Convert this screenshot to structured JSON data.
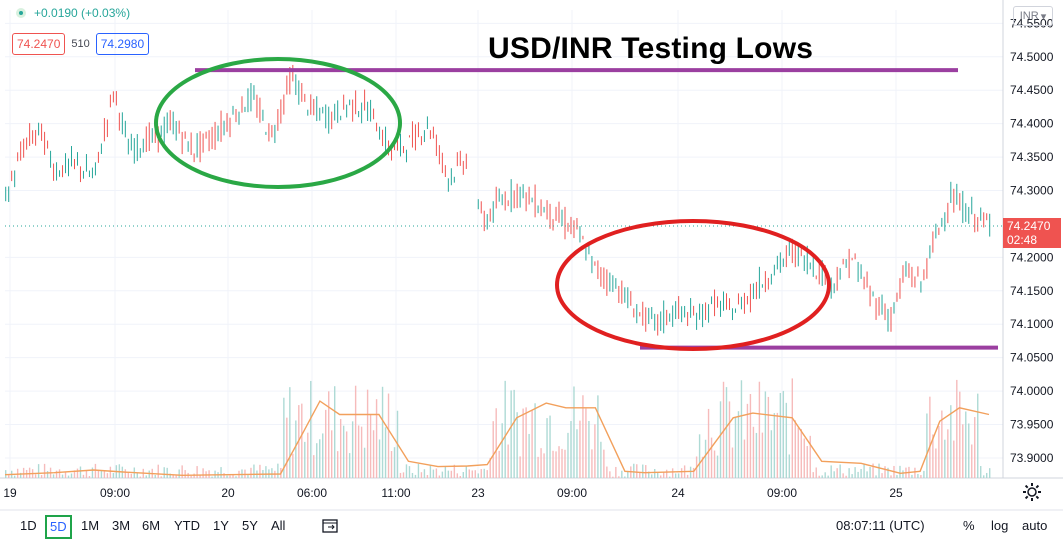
{
  "header": {
    "change": "+0.0190 (+0.03%)",
    "bid": "74.2470",
    "spread": "510",
    "ask": "74.2980",
    "currency": "INR"
  },
  "annotation": {
    "title": "USD/INR Testing Lows",
    "resistance_level": 74.48,
    "support_level": 74.065,
    "colors": {
      "resistance": "#9b3fa0",
      "green_ellipse": "#2aa845",
      "red_ellipse": "#e02020"
    }
  },
  "price_label": {
    "price": "74.2470",
    "countdown": "02:48"
  },
  "chart_data": {
    "type": "candlestick+volume",
    "title": "USD/INR Testing Lows",
    "y_ticks": [
      "74.5500",
      "74.5000",
      "74.4500",
      "74.4000",
      "74.3500",
      "74.3000",
      "74.2000",
      "74.1500",
      "74.1000",
      "74.0500",
      "74.0000",
      "73.9500",
      "73.9000"
    ],
    "ylim": [
      73.87,
      74.57
    ],
    "x_ticks": [
      "19",
      "09:00",
      "20",
      "06:00",
      "11:00",
      "23",
      "09:00",
      "24",
      "09:00",
      "25"
    ],
    "last_price": 74.247,
    "price_path": [
      [
        0,
        74.29
      ],
      [
        0.02,
        74.37
      ],
      [
        0.035,
        74.39
      ],
      [
        0.05,
        74.33
      ],
      [
        0.07,
        74.34
      ],
      [
        0.09,
        74.32
      ],
      [
        0.11,
        74.45
      ],
      [
        0.125,
        74.36
      ],
      [
        0.15,
        74.38
      ],
      [
        0.17,
        74.4
      ],
      [
        0.19,
        74.36
      ],
      [
        0.21,
        74.38
      ],
      [
        0.23,
        74.41
      ],
      [
        0.25,
        74.44
      ],
      [
        0.27,
        74.38
      ],
      [
        0.29,
        74.47
      ],
      [
        0.31,
        74.42
      ],
      [
        0.33,
        74.41
      ],
      [
        0.35,
        74.43
      ],
      [
        0.37,
        74.42
      ],
      [
        0.39,
        74.36
      ],
      [
        0.41,
        74.37
      ],
      [
        0.43,
        74.4
      ],
      [
        0.45,
        74.32
      ],
      [
        0.47,
        74.35
      ],
      [
        0.485,
        74.25
      ],
      [
        0.5,
        74.28
      ],
      [
        0.52,
        74.3
      ],
      [
        0.54,
        74.28
      ],
      [
        0.56,
        74.26
      ],
      [
        0.58,
        74.24
      ],
      [
        0.6,
        74.18
      ],
      [
        0.62,
        74.16
      ],
      [
        0.64,
        74.12
      ],
      [
        0.66,
        74.1
      ],
      [
        0.68,
        74.12
      ],
      [
        0.7,
        74.11
      ],
      [
        0.72,
        74.13
      ],
      [
        0.74,
        74.12
      ],
      [
        0.76,
        74.15
      ],
      [
        0.78,
        74.18
      ],
      [
        0.8,
        74.21
      ],
      [
        0.82,
        74.19
      ],
      [
        0.84,
        74.16
      ],
      [
        0.86,
        74.2
      ],
      [
        0.88,
        74.14
      ],
      [
        0.9,
        74.11
      ],
      [
        0.915,
        74.18
      ],
      [
        0.93,
        74.16
      ],
      [
        0.945,
        74.23
      ],
      [
        0.96,
        74.29
      ],
      [
        0.975,
        74.27
      ],
      [
        1.0,
        74.247
      ]
    ],
    "volume_avg_path": [
      [
        0,
        73.875
      ],
      [
        0.05,
        73.878
      ],
      [
        0.09,
        73.882
      ],
      [
        0.12,
        73.879
      ],
      [
        0.18,
        73.874
      ],
      [
        0.28,
        73.876
      ],
      [
        0.3,
        73.93
      ],
      [
        0.32,
        73.985
      ],
      [
        0.34,
        73.965
      ],
      [
        0.38,
        73.965
      ],
      [
        0.41,
        73.895
      ],
      [
        0.44,
        73.887
      ],
      [
        0.47,
        73.888
      ],
      [
        0.49,
        73.89
      ],
      [
        0.52,
        73.96
      ],
      [
        0.55,
        73.982
      ],
      [
        0.57,
        73.975
      ],
      [
        0.6,
        73.975
      ],
      [
        0.63,
        73.88
      ],
      [
        0.65,
        73.878
      ],
      [
        0.7,
        73.88
      ],
      [
        0.72,
        73.92
      ],
      [
        0.74,
        73.96
      ],
      [
        0.76,
        73.967
      ],
      [
        0.8,
        73.96
      ],
      [
        0.83,
        73.895
      ],
      [
        0.87,
        73.892
      ],
      [
        0.91,
        73.877
      ],
      [
        0.93,
        73.88
      ],
      [
        0.95,
        73.955
      ],
      [
        0.97,
        73.975
      ],
      [
        1.0,
        73.965
      ]
    ]
  },
  "toolbar": {
    "ranges": [
      "1D",
      "5D",
      "1M",
      "3M",
      "6M",
      "YTD",
      "1Y",
      "5Y",
      "All"
    ],
    "selected": "5D",
    "time": "08:07:11 (UTC)",
    "percent": "%",
    "log": "log",
    "auto": "auto"
  }
}
